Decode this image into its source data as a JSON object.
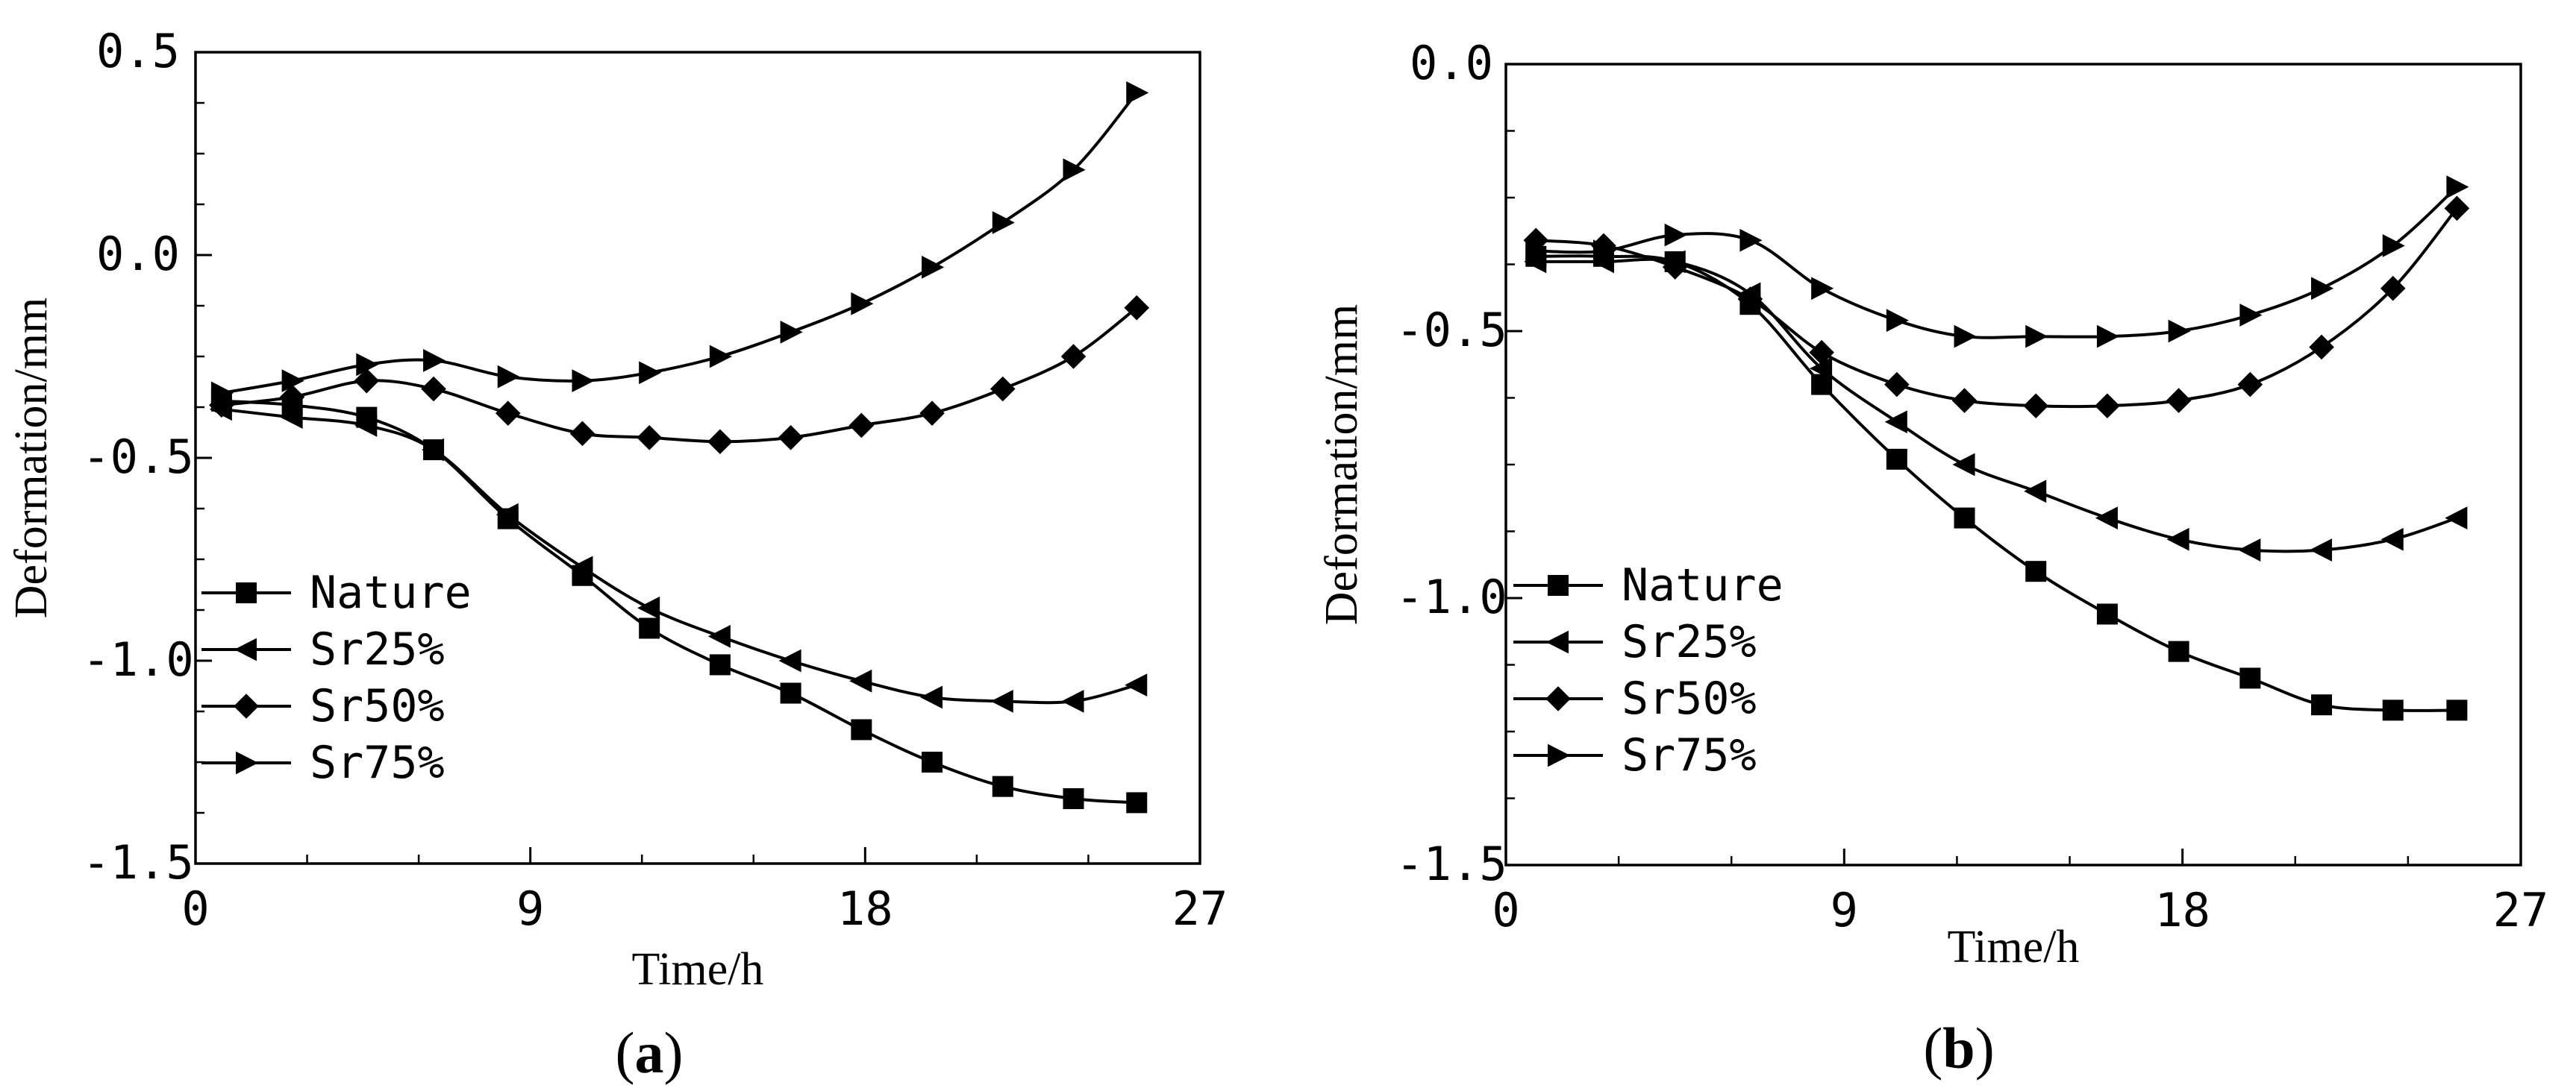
{
  "chart_data": [
    {
      "type": "line",
      "panel_label": "a",
      "xlabel": "Time/h",
      "ylabel": "Deformation/mm",
      "xlim": [
        0,
        27
      ],
      "ylim": [
        -1.5,
        0.5
      ],
      "xticks": [
        0,
        9,
        18,
        27
      ],
      "xtick_labels": [
        "0",
        "9",
        "18",
        "27"
      ],
      "yticks": [
        0.5,
        0.0,
        -0.5,
        -1.0,
        -1.5
      ],
      "ytick_labels": [
        "0.5",
        "0.0",
        "-0.5",
        "-1.0",
        "-1.5"
      ],
      "grid": false,
      "legend_position": "bottom-left",
      "series": [
        {
          "name": "Nature",
          "marker": "square",
          "x": [
            0.7,
            2.6,
            4.6,
            6.4,
            8.4,
            10.4,
            12.2,
            14.1,
            16.0,
            17.9,
            19.8,
            21.7,
            23.6,
            25.3
          ],
          "y": [
            -0.36,
            -0.37,
            -0.4,
            -0.48,
            -0.65,
            -0.79,
            -0.92,
            -1.01,
            -1.08,
            -1.17,
            -1.25,
            -1.31,
            -1.34,
            -1.35
          ]
        },
        {
          "name": "Sr25%",
          "marker": "triangle-left",
          "x": [
            0.7,
            2.6,
            4.6,
            6.4,
            8.4,
            10.4,
            12.2,
            14.1,
            16.0,
            17.9,
            19.8,
            21.7,
            23.6,
            25.3
          ],
          "y": [
            -0.38,
            -0.4,
            -0.42,
            -0.48,
            -0.64,
            -0.77,
            -0.87,
            -0.94,
            -1.0,
            -1.05,
            -1.09,
            -1.1,
            -1.1,
            -1.06
          ]
        },
        {
          "name": "Sr50%",
          "marker": "diamond",
          "x": [
            0.7,
            2.6,
            4.6,
            6.4,
            8.4,
            10.4,
            12.2,
            14.1,
            16.0,
            17.9,
            19.8,
            21.7,
            23.6,
            25.3
          ],
          "y": [
            -0.37,
            -0.35,
            -0.31,
            -0.33,
            -0.39,
            -0.44,
            -0.45,
            -0.46,
            -0.45,
            -0.42,
            -0.39,
            -0.33,
            -0.25,
            -0.13
          ]
        },
        {
          "name": "Sr75%",
          "marker": "triangle-right",
          "x": [
            0.7,
            2.6,
            4.6,
            6.4,
            8.4,
            10.4,
            12.2,
            14.1,
            16.0,
            17.9,
            19.8,
            21.7,
            23.6,
            25.3
          ],
          "y": [
            -0.34,
            -0.31,
            -0.27,
            -0.26,
            -0.3,
            -0.31,
            -0.29,
            -0.25,
            -0.19,
            -0.12,
            -0.03,
            0.08,
            0.21,
            0.4
          ]
        }
      ]
    },
    {
      "type": "line",
      "panel_label": "b",
      "xlabel": "Time/h",
      "ylabel": "Deformation/mm",
      "xlim": [
        0,
        27
      ],
      "ylim": [
        -1.5,
        0.0
      ],
      "xticks": [
        0,
        9,
        18,
        27
      ],
      "xtick_labels": [
        "0",
        "9",
        "18",
        "27"
      ],
      "yticks": [
        0.0,
        -0.5,
        -1.0,
        -1.5
      ],
      "ytick_labels": [
        "0.0",
        "-0.5",
        "-1.0",
        "-1.5"
      ],
      "grid": false,
      "legend_position": "bottom-left",
      "series": [
        {
          "name": "Nature",
          "marker": "square",
          "x": [
            0.8,
            2.6,
            4.5,
            6.5,
            8.4,
            10.4,
            12.2,
            14.1,
            16.0,
            17.9,
            19.8,
            21.7,
            23.6,
            25.3
          ],
          "y": [
            -0.36,
            -0.36,
            -0.37,
            -0.45,
            -0.6,
            -0.74,
            -0.85,
            -0.95,
            -1.03,
            -1.1,
            -1.15,
            -1.2,
            -1.21,
            -1.21
          ]
        },
        {
          "name": "Sr25%",
          "marker": "triangle-left",
          "x": [
            0.8,
            2.6,
            4.5,
            6.5,
            8.4,
            10.4,
            12.2,
            14.1,
            16.0,
            17.9,
            19.8,
            21.7,
            23.6,
            25.3
          ],
          "y": [
            -0.37,
            -0.37,
            -0.37,
            -0.43,
            -0.57,
            -0.67,
            -0.75,
            -0.8,
            -0.85,
            -0.89,
            -0.91,
            -0.91,
            -0.89,
            -0.85
          ]
        },
        {
          "name": "Sr50%",
          "marker": "diamond",
          "x": [
            0.8,
            2.6,
            4.5,
            6.5,
            8.4,
            10.4,
            12.2,
            14.1,
            16.0,
            17.9,
            19.8,
            21.7,
            23.6,
            25.3
          ],
          "y": [
            -0.33,
            -0.34,
            -0.38,
            -0.44,
            -0.54,
            -0.6,
            -0.63,
            -0.64,
            -0.64,
            -0.63,
            -0.6,
            -0.53,
            -0.42,
            -0.27
          ]
        },
        {
          "name": "Sr75%",
          "marker": "triangle-right",
          "x": [
            0.8,
            2.6,
            4.5,
            6.5,
            8.4,
            10.4,
            12.2,
            14.1,
            16.0,
            17.9,
            19.8,
            21.7,
            23.6,
            25.3
          ],
          "y": [
            -0.35,
            -0.35,
            -0.32,
            -0.33,
            -0.42,
            -0.48,
            -0.51,
            -0.51,
            -0.51,
            -0.5,
            -0.47,
            -0.42,
            -0.34,
            -0.23
          ]
        }
      ]
    }
  ]
}
